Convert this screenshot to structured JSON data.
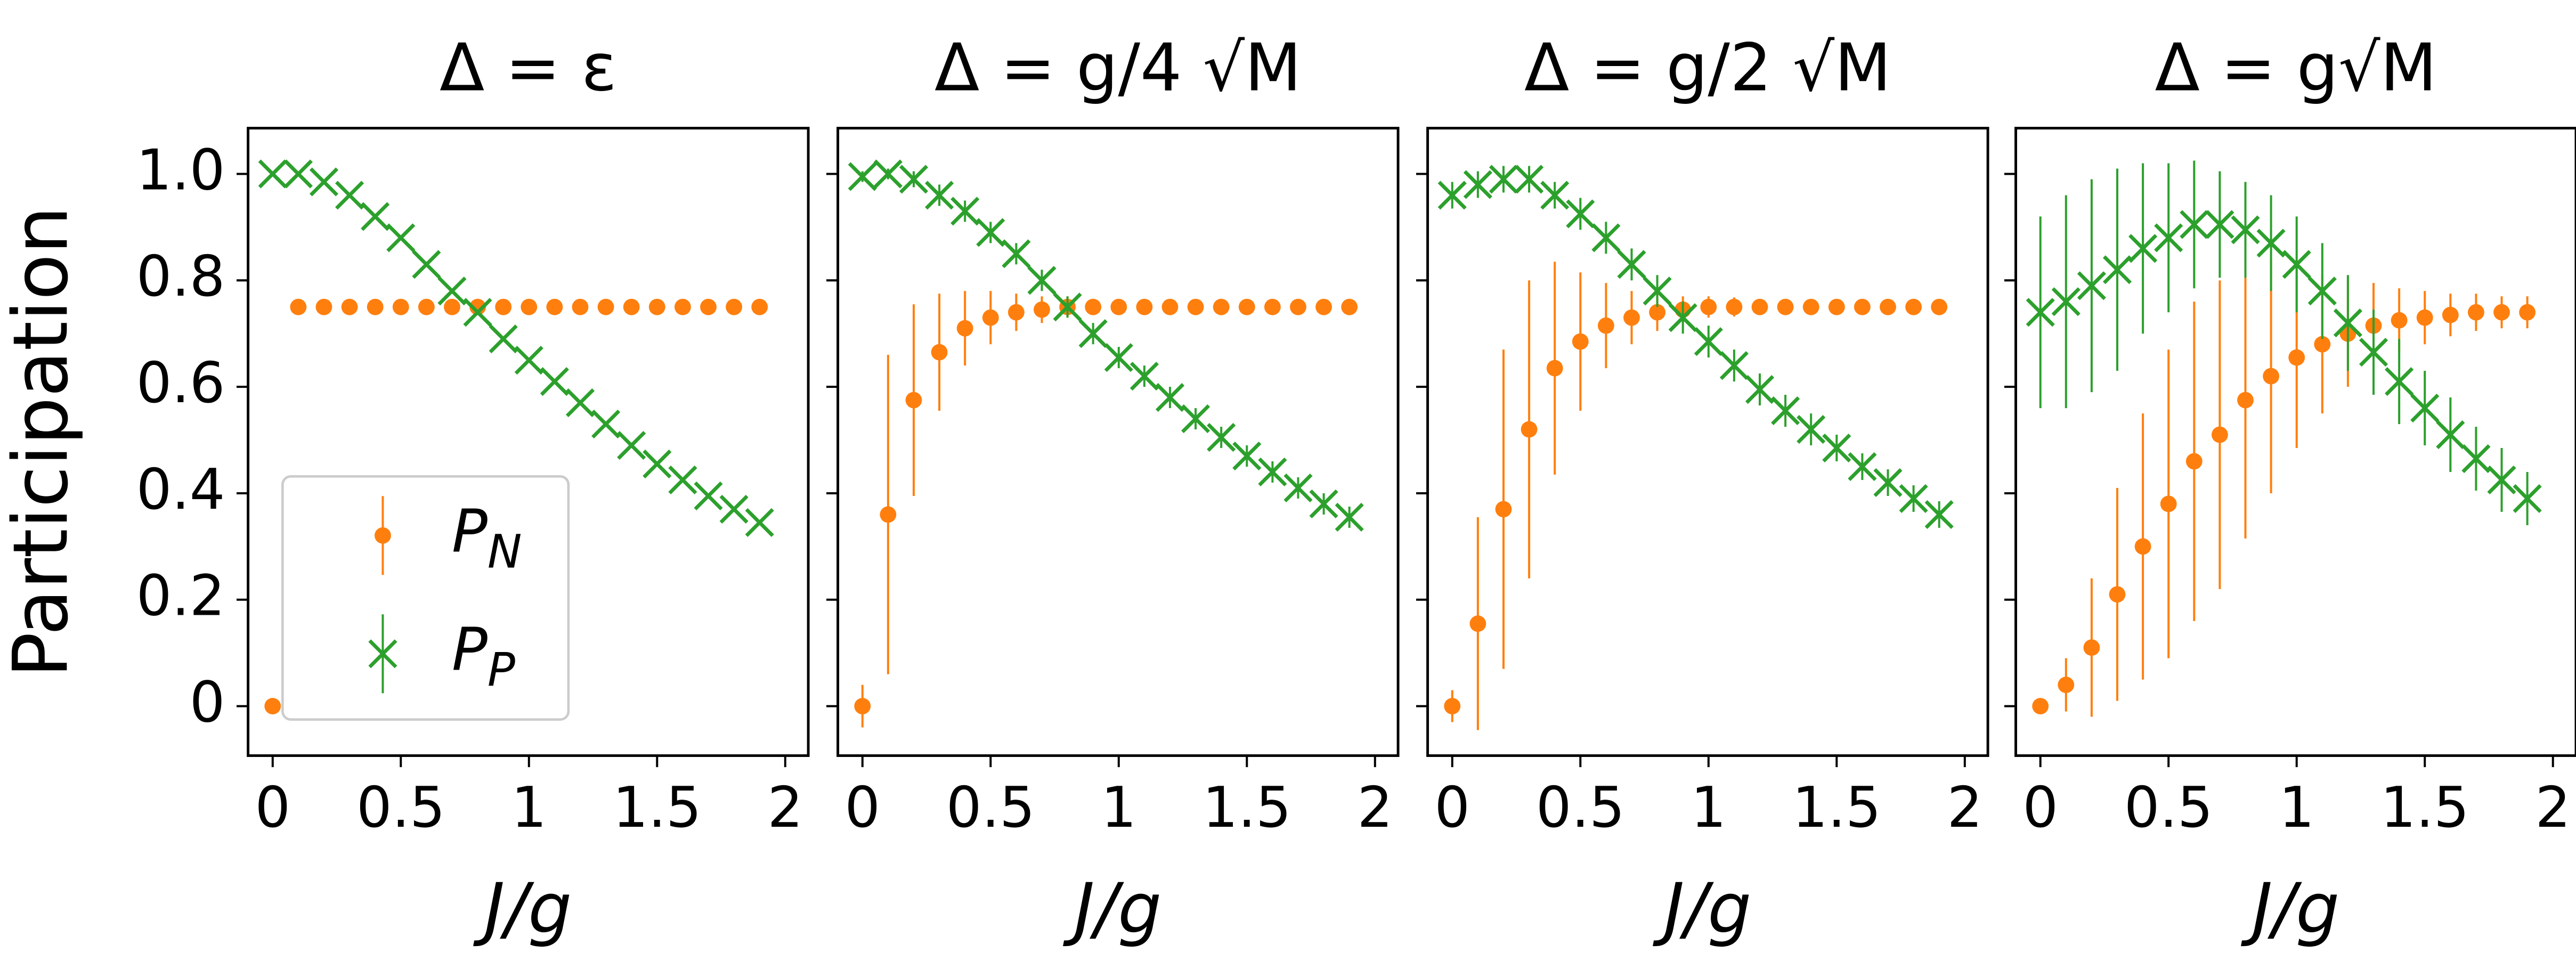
{
  "chart_data": [
    {
      "type": "scatter",
      "title": "Δ = ε",
      "x_label": "J/g",
      "y_label": "Participation",
      "x": [
        0,
        0.1,
        0.2,
        0.3,
        0.4,
        0.5,
        0.6,
        0.7,
        0.8,
        0.9,
        1.0,
        1.1,
        1.2,
        1.3,
        1.4,
        1.5,
        1.6,
        1.7,
        1.8,
        1.9
      ],
      "xlim": [
        -0.096,
        2.09
      ],
      "ylim": [
        -0.093,
        1.086
      ],
      "xticks": [
        0,
        0.5,
        1,
        1.5,
        2
      ],
      "yticks": [
        0,
        0.2,
        0.4,
        {
          "value": 0.6,
          "label": "0.6"
        },
        0.8,
        {
          "value": 1,
          "label": "1.0"
        }
      ],
      "show_ytick_labels": true,
      "legend": "lower left",
      "series": [
        {
          "name": "P_N",
          "color": "#ff7f0e",
          "marker": "dot",
          "values": [
            0,
            0.75,
            0.75,
            0.75,
            0.75,
            0.75,
            0.75,
            0.75,
            0.75,
            0.75,
            0.75,
            0.75,
            0.75,
            0.75,
            0.75,
            0.75,
            0.75,
            0.75,
            0.75,
            0.75
          ]
        },
        {
          "name": "P_P",
          "color": "#2ca02c",
          "marker": "x",
          "values": [
            1.0,
            1.0,
            0.985,
            0.96,
            0.92,
            0.88,
            0.83,
            0.78,
            0.74,
            0.69,
            0.65,
            0.61,
            0.57,
            0.53,
            0.49,
            0.455,
            0.425,
            0.395,
            0.37,
            0.345
          ]
        }
      ]
    },
    {
      "type": "scatter",
      "title": "Δ = g/4 √M",
      "x_label": "J/g",
      "x": [
        0,
        0.1,
        0.2,
        0.3,
        0.4,
        0.5,
        0.6,
        0.7,
        0.8,
        0.9,
        1.0,
        1.1,
        1.2,
        1.3,
        1.4,
        1.5,
        1.6,
        1.7,
        1.8,
        1.9
      ],
      "xlim": [
        -0.096,
        2.09
      ],
      "ylim": [
        -0.093,
        1.086
      ],
      "xticks": [
        0,
        0.5,
        1,
        1.5,
        2
      ],
      "yticks": [
        0,
        0.2,
        0.4,
        0.6,
        0.8,
        1
      ],
      "show_ytick_labels": false,
      "series": [
        {
          "color": "#ff7f0e",
          "marker": "dot",
          "values": [
            0,
            0.36,
            0.575,
            0.665,
            0.71,
            0.73,
            0.74,
            0.745,
            0.75,
            0.75,
            0.75,
            0.75,
            0.75,
            0.75,
            0.75,
            0.75,
            0.75,
            0.75,
            0.75,
            0.75
          ],
          "errors": [
            0.04,
            0.3,
            0.18,
            0.11,
            0.07,
            0.05,
            0.035,
            0.025,
            0.02,
            0.015,
            0.012,
            0.01,
            0.01,
            0.008,
            0.008,
            0.007,
            0.006,
            0.006,
            0.005,
            0.005
          ]
        },
        {
          "color": "#2ca02c",
          "marker": "x",
          "values": [
            0.995,
            1.0,
            0.99,
            0.96,
            0.93,
            0.89,
            0.85,
            0.8,
            0.75,
            0.7,
            0.655,
            0.62,
            0.58,
            0.54,
            0.505,
            0.47,
            0.44,
            0.41,
            0.38,
            0.355
          ],
          "errors": [
            0.01,
            0.01,
            0.015,
            0.02,
            0.02,
            0.02,
            0.02,
            0.02,
            0.02,
            0.02,
            0.02,
            0.02,
            0.02,
            0.02,
            0.02,
            0.02,
            0.02,
            0.02,
            0.02,
            0.02
          ]
        }
      ]
    },
    {
      "type": "scatter",
      "title": "Δ = g/2 √M",
      "x_label": "J/g",
      "x": [
        0,
        0.1,
        0.2,
        0.3,
        0.4,
        0.5,
        0.6,
        0.7,
        0.8,
        0.9,
        1.0,
        1.1,
        1.2,
        1.3,
        1.4,
        1.5,
        1.6,
        1.7,
        1.8,
        1.9
      ],
      "xlim": [
        -0.096,
        2.09
      ],
      "ylim": [
        -0.093,
        1.086
      ],
      "xticks": [
        0,
        0.5,
        1,
        1.5,
        2
      ],
      "yticks": [
        0,
        0.2,
        0.4,
        0.6,
        0.8,
        1
      ],
      "show_ytick_labels": false,
      "series": [
        {
          "color": "#ff7f0e",
          "marker": "dot",
          "values": [
            0,
            0.155,
            0.37,
            0.52,
            0.635,
            0.685,
            0.715,
            0.73,
            0.74,
            0.745,
            0.75,
            0.75,
            0.75,
            0.75,
            0.75,
            0.75,
            0.75,
            0.75,
            0.75,
            0.75
          ],
          "errors": [
            0.03,
            0.2,
            0.3,
            0.28,
            0.2,
            0.13,
            0.08,
            0.05,
            0.035,
            0.025,
            0.02,
            0.018,
            0.015,
            0.013,
            0.012,
            0.011,
            0.01,
            0.01,
            0.01,
            0.01
          ]
        },
        {
          "color": "#2ca02c",
          "marker": "x",
          "values": [
            0.96,
            0.98,
            0.99,
            0.99,
            0.96,
            0.925,
            0.88,
            0.83,
            0.78,
            0.73,
            0.685,
            0.64,
            0.595,
            0.555,
            0.52,
            0.485,
            0.45,
            0.42,
            0.39,
            0.36
          ],
          "errors": [
            0.025,
            0.025,
            0.025,
            0.025,
            0.025,
            0.03,
            0.03,
            0.03,
            0.03,
            0.03,
            0.03,
            0.03,
            0.03,
            0.03,
            0.03,
            0.025,
            0.025,
            0.025,
            0.025,
            0.025
          ]
        }
      ]
    },
    {
      "type": "scatter",
      "title": "Δ = g√M",
      "x_label": "J/g",
      "x": [
        0,
        0.1,
        0.2,
        0.3,
        0.4,
        0.5,
        0.6,
        0.7,
        0.8,
        0.9,
        1.0,
        1.1,
        1.2,
        1.3,
        1.4,
        1.5,
        1.6,
        1.7,
        1.8,
        1.9
      ],
      "xlim": [
        -0.096,
        2.09
      ],
      "ylim": [
        -0.093,
        1.086
      ],
      "xticks": [
        0,
        0.5,
        1,
        1.5,
        2
      ],
      "yticks": [
        0,
        0.2,
        0.4,
        0.6,
        0.8,
        1
      ],
      "show_ytick_labels": false,
      "series": [
        {
          "color": "#ff7f0e",
          "marker": "dot",
          "values": [
            0,
            0.04,
            0.11,
            0.21,
            0.3,
            0.38,
            0.46,
            0.51,
            0.575,
            0.62,
            0.655,
            0.68,
            0.7,
            0.715,
            0.725,
            0.73,
            0.735,
            0.74,
            0.74,
            0.74
          ],
          "errors": [
            0.01,
            0.05,
            0.13,
            0.2,
            0.25,
            0.29,
            0.3,
            0.29,
            0.26,
            0.22,
            0.17,
            0.13,
            0.1,
            0.08,
            0.06,
            0.05,
            0.04,
            0.035,
            0.03,
            0.03
          ]
        },
        {
          "color": "#2ca02c",
          "marker": "x",
          "values": [
            0.74,
            0.76,
            0.79,
            0.82,
            0.86,
            0.88,
            0.905,
            0.905,
            0.895,
            0.87,
            0.83,
            0.78,
            0.72,
            0.665,
            0.61,
            0.56,
            0.51,
            0.465,
            0.425,
            0.39
          ],
          "errors": [
            0.18,
            0.2,
            0.2,
            0.19,
            0.16,
            0.14,
            0.12,
            0.1,
            0.09,
            0.09,
            0.09,
            0.09,
            0.09,
            0.08,
            0.08,
            0.07,
            0.07,
            0.06,
            0.06,
            0.05
          ]
        }
      ]
    }
  ]
}
